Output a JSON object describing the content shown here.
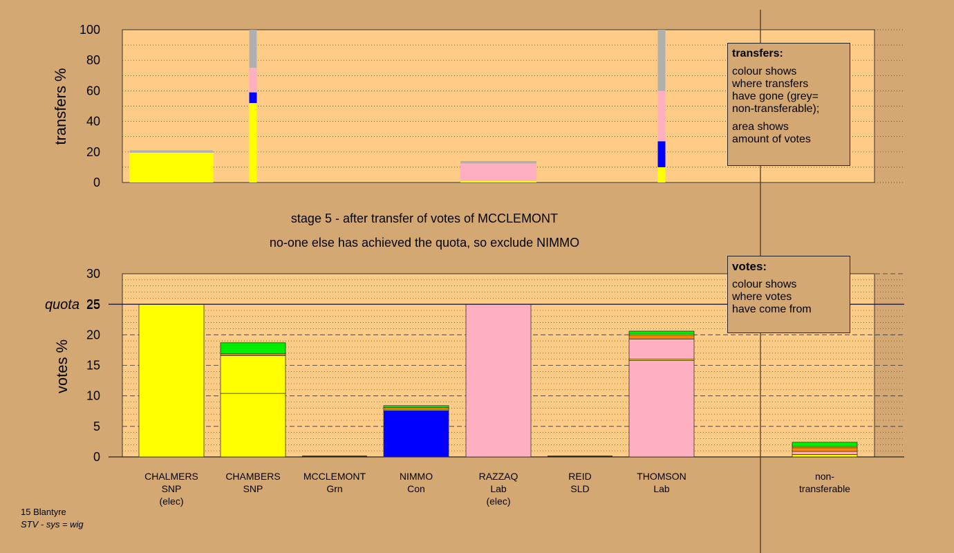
{
  "stage": {
    "line1": "stage 5 - after transfer of votes of MCCLEMONT",
    "line2": "no-one else has achieved the quota, so exclude NIMMO"
  },
  "transfers_box": {
    "title": "transfers:",
    "line1": "colour shows",
    "line2": "where transfers",
    "line3": "have gone (grey=",
    "line4": "non-transferable);",
    "line5": "area shows",
    "line6": "amount of votes"
  },
  "votes_box": {
    "title": "votes:",
    "line1": "colour shows",
    "line2": "where votes",
    "line3": "have come from"
  },
  "footer": {
    "line1": "15 Blantyre",
    "line2": "STV - sys = wig"
  },
  "colors": {
    "SNP": "#ffff00",
    "Grn": "#00ee00",
    "Con": "#0000ff",
    "Lab": "#ffb0c0",
    "SLD": "#ff8800",
    "nontransferable": "#b0b0b0",
    "background": "#d4a872",
    "plot": "#ffcc88"
  },
  "chart_data": [
    {
      "type": "bar",
      "ylabel": "transfers %",
      "ylim": [
        0,
        100
      ],
      "yticks": [
        "0",
        "20",
        "40",
        "60",
        "80",
        "100"
      ],
      "bars": [
        {
          "candidate": "CHALMERS",
          "width_pct": 11,
          "segments": [
            {
              "party": "SNP",
              "value": 19.5
            },
            {
              "party": "nontransferable",
              "value": 1.5
            }
          ]
        },
        {
          "candidate": "CHAMBERS",
          "width_pct": 1,
          "segments": [
            {
              "party": "SNP",
              "value": 52
            },
            {
              "party": "Con",
              "value": 7
            },
            {
              "party": "Lab",
              "value": 16
            },
            {
              "party": "nontransferable",
              "value": 25
            }
          ]
        },
        {
          "candidate": "RAZZAQ",
          "width_pct": 10,
          "segments": [
            {
              "party": "SNP",
              "value": 1
            },
            {
              "party": "Lab",
              "value": 11.5
            },
            {
              "party": "nontransferable",
              "value": 1.5
            }
          ]
        },
        {
          "candidate": "THOMSON",
          "width_pct": 1,
          "segments": [
            {
              "party": "SNP",
              "value": 10
            },
            {
              "party": "Con",
              "value": 17
            },
            {
              "party": "Lab",
              "value": 33
            },
            {
              "party": "nontransferable",
              "value": 40
            }
          ]
        }
      ]
    },
    {
      "type": "bar",
      "ylabel": "votes %",
      "ylim": [
        0,
        30
      ],
      "yticks": [
        "0",
        "5",
        "10",
        "15",
        "20",
        "25",
        "30"
      ],
      "quota": 25,
      "quota_label": "quota",
      "candidates": [
        {
          "name": "CHALMERS",
          "party": "SNP",
          "note": "(elec)",
          "segments": [
            {
              "party": "SNP",
              "value": 25
            }
          ]
        },
        {
          "name": "CHAMBERS",
          "party": "SNP",
          "note": "",
          "segments": [
            {
              "party": "SNP",
              "value": 10.4
            },
            {
              "party": "SNP",
              "value": 6.2
            },
            {
              "party": "SLD",
              "value": 0.3
            },
            {
              "party": "Grn",
              "value": 1.8
            }
          ]
        },
        {
          "name": "MCCLEMONT",
          "party": "Grn",
          "note": "",
          "segments": []
        },
        {
          "name": "NIMMO",
          "party": "Con",
          "note": "",
          "segments": [
            {
              "party": "Con",
              "value": 7.6
            },
            {
              "party": "SNP",
              "value": 0.2
            },
            {
              "party": "SLD",
              "value": 0.3
            },
            {
              "party": "Grn",
              "value": 0.3
            }
          ]
        },
        {
          "name": "RAZZAQ",
          "party": "Lab",
          "note": "(elec)",
          "segments": [
            {
              "party": "Lab",
              "value": 25
            }
          ]
        },
        {
          "name": "REID",
          "party": "SLD",
          "note": "",
          "segments": []
        },
        {
          "name": "THOMSON",
          "party": "Lab",
          "note": "",
          "segments": [
            {
              "party": "Lab",
              "value": 15.8
            },
            {
              "party": "SNP",
              "value": 0.2
            },
            {
              "party": "Lab",
              "value": 3.3
            },
            {
              "party": "SLD",
              "value": 0.6
            },
            {
              "party": "SNP",
              "value": 0.2
            },
            {
              "party": "Grn",
              "value": 0.5
            }
          ]
        },
        {
          "name": "non-",
          "party": "transferable",
          "note": "",
          "segments": [
            {
              "party": "SNP",
              "value": 0.4
            },
            {
              "party": "Lab",
              "value": 0.5
            },
            {
              "party": "SLD",
              "value": 0.6
            },
            {
              "party": "SNP",
              "value": 0.2
            },
            {
              "party": "Grn",
              "value": 0.7
            }
          ]
        }
      ]
    }
  ]
}
